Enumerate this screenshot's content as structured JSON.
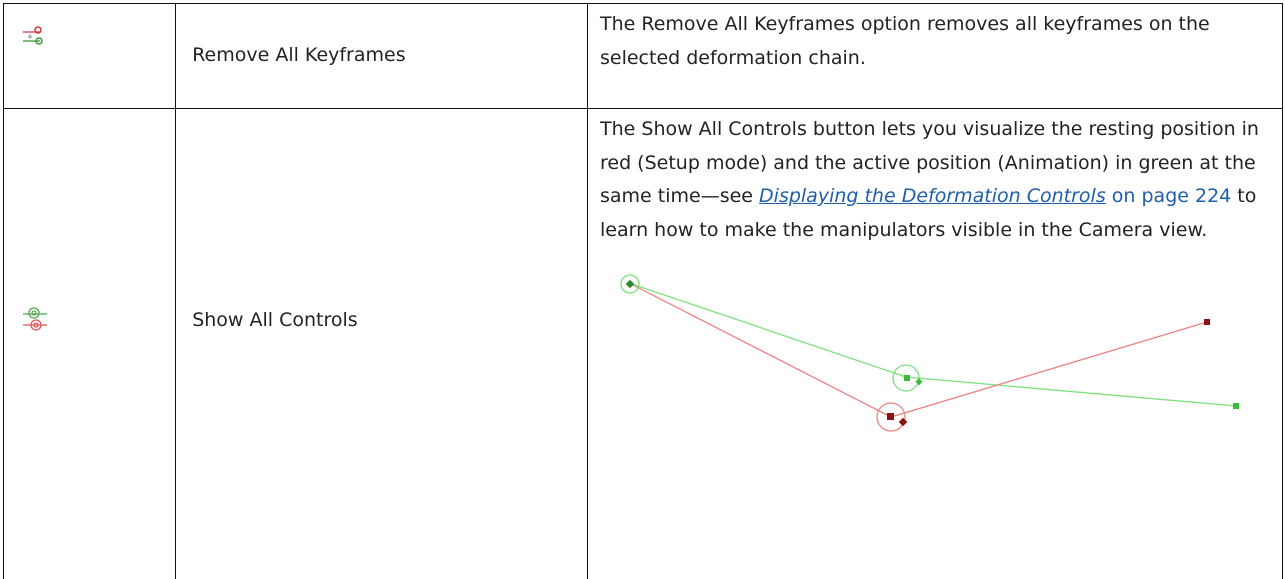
{
  "table": {
    "rows": [
      {
        "name": "Remove All Keyframes",
        "description": {
          "text": "The Remove All Keyframes option removes all keyframes on the selected deformation chain."
        }
      },
      {
        "name": "Show All Controls",
        "description": {
          "before": "The Show All Controls button lets you visualize the resting position in red (Setup mode) and the active position (Animation) in green at the same time—see ",
          "link": "Displaying the Deformation Controls",
          "ref": " on page 224",
          "after": " to learn how to make the manipulators visible in the Camera view."
        }
      }
    ]
  }
}
